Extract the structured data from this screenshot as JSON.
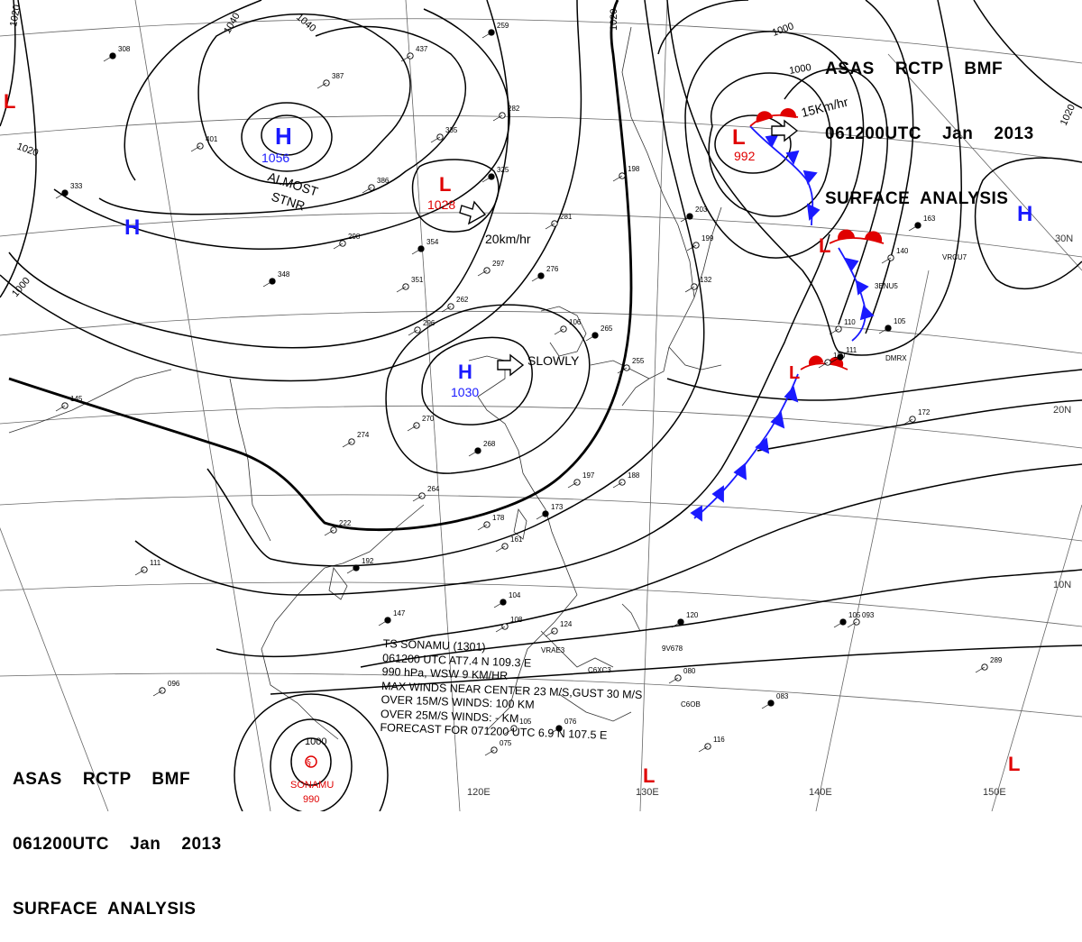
{
  "header": {
    "line1": "ASAS    RCTP    BMF",
    "line2": "061200UTC    Jan    2013",
    "line3": "SURFACE  ANALYSIS"
  },
  "pressure_centers": [
    {
      "id": "h-siberia",
      "type": "H",
      "value": "1056",
      "color": "#1a1aff"
    },
    {
      "id": "h-west",
      "type": "H",
      "value": "",
      "color": "#1a1aff"
    },
    {
      "id": "h-china",
      "type": "H",
      "value": "1030",
      "color": "#1a1aff"
    },
    {
      "id": "h-pacific",
      "type": "H",
      "value": "",
      "color": "#1a1aff"
    },
    {
      "id": "l-mongolia",
      "type": "L",
      "value": "1028",
      "color": "#e00000"
    },
    {
      "id": "l-kamchatka",
      "type": "L",
      "value": "992",
      "color": "#e00000"
    },
    {
      "id": "l-northpac",
      "type": "L",
      "value": "",
      "color": "#e00000"
    },
    {
      "id": "l-front",
      "type": "L",
      "value": "",
      "color": "#e00000"
    },
    {
      "id": "l-west-edge",
      "type": "L",
      "value": "",
      "color": "#e00000"
    },
    {
      "id": "l-south1",
      "type": "L",
      "value": "",
      "color": "#e00000"
    },
    {
      "id": "l-south2",
      "type": "L",
      "value": "",
      "color": "#e00000"
    }
  ],
  "motion_labels": {
    "almost": "ALMOST",
    "stnr": "STNR",
    "speed_mongolia": "20km/hr",
    "slowly": "SLOWLY",
    "speed_kamchatka": "15Km/hr"
  },
  "isobar_labels": [
    "1020",
    "1040",
    "1040",
    "1020",
    "1000",
    "1000",
    "1020",
    "1020",
    "1000"
  ],
  "lat_labels": [
    "30N",
    "20N",
    "10N"
  ],
  "lon_labels": [
    "120E",
    "130E",
    "140E",
    "150E"
  ],
  "typhoon": {
    "name": "SONAMU",
    "pressure": "990",
    "isobar": "1000",
    "color": "#e00000",
    "lines": [
      "TS  SONAMU  (1301)",
      "061200 UTC  AT7.4 N  109.3 E",
      "990 hPa, WSW  9 KM/HR",
      "MAX WINDS NEAR CENTER 23 M/S,GUST 30 M/S",
      "OVER 15M/S WINDS: 100 KM",
      "OVER 25M/S WINDS: - KM",
      "FORECAST FOR 071200 UTC 6.9 N  107.5 E"
    ]
  },
  "ship_ids": [
    "VRCU7",
    "3ENU5",
    "DMRX",
    "VRAE3",
    "C6XC3",
    "9V678",
    "C6OB"
  ],
  "station_values": [
    "308",
    "387",
    "437",
    "259",
    "282",
    "335",
    "325",
    "281",
    "297",
    "276",
    "262",
    "296",
    "354",
    "298",
    "351",
    "348",
    "401",
    "386",
    "333",
    "270",
    "274",
    "268",
    "264",
    "222",
    "192",
    "178",
    "161",
    "173",
    "197",
    "188",
    "147",
    "111",
    "145",
    "163",
    "140",
    "110",
    "105",
    "120",
    "172",
    "104",
    "108",
    "124",
    "120",
    "096",
    "080",
    "083",
    "093",
    "105",
    "076",
    "075",
    "106",
    "265",
    "255",
    "198",
    "203",
    "199",
    "132",
    "111",
    "289",
    "116",
    "105"
  ],
  "colors": {
    "high": "#1a1aff",
    "low": "#e00000",
    "cold_front": "#1a1aff",
    "warm_front": "#e00000",
    "line": "#000000"
  }
}
